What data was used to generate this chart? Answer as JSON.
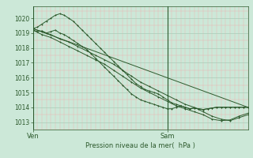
{
  "bg_color": "#cce8d8",
  "grid_color_major": "#aaccb8",
  "grid_color_minor": "#f0b0b0",
  "line_color": "#2d5a2d",
  "xlabel": "Pression niveau de la mer(  hPa )",
  "tick_color": "#2d5a2d",
  "ylim": [
    1012.5,
    1020.8
  ],
  "yticks": [
    1013,
    1014,
    1015,
    1016,
    1017,
    1018,
    1019,
    1020
  ],
  "xlim": [
    0,
    48
  ],
  "ven_x": 0,
  "sam_x": 30,
  "total_hours": 48,
  "line1_x": [
    0,
    1,
    2,
    3,
    4,
    5,
    6,
    7,
    8,
    9,
    10,
    11,
    12,
    13,
    14,
    15,
    16,
    17,
    18,
    19,
    20,
    21,
    22,
    23,
    24,
    25,
    26,
    27,
    28,
    29,
    30,
    31,
    32,
    33,
    34,
    35,
    36,
    37,
    38,
    39,
    40,
    41,
    42,
    43,
    44,
    45,
    46,
    47,
    48
  ],
  "line1_y": [
    1019.2,
    1019.1,
    1019.15,
    1019.0,
    1019.1,
    1019.2,
    1019.0,
    1018.9,
    1018.7,
    1018.5,
    1018.3,
    1018.1,
    1017.9,
    1017.6,
    1017.3,
    1017.0,
    1016.7,
    1016.4,
    1016.1,
    1015.8,
    1015.5,
    1015.2,
    1014.9,
    1014.7,
    1014.5,
    1014.4,
    1014.3,
    1014.2,
    1014.1,
    1014.0,
    1013.9,
    1013.9,
    1014.0,
    1014.1,
    1014.0,
    1013.9,
    1013.95,
    1013.9,
    1013.85,
    1013.9,
    1013.95,
    1014.0,
    1014.0,
    1014.0,
    1014.0,
    1014.0,
    1014.0,
    1014.0,
    1014.0
  ],
  "line2_x": [
    0,
    1,
    2,
    3,
    4,
    5,
    6,
    7,
    8,
    9,
    10,
    11,
    12,
    13,
    14,
    15,
    16,
    17,
    18,
    19,
    20,
    21,
    22,
    23,
    24,
    25,
    26,
    27,
    28,
    29,
    30,
    31,
    32,
    33,
    34,
    35,
    36,
    37,
    38,
    39,
    40,
    41,
    42,
    43,
    44,
    45,
    46,
    47,
    48
  ],
  "line2_y": [
    1019.3,
    1019.4,
    1019.6,
    1019.8,
    1020.0,
    1020.2,
    1020.3,
    1020.2,
    1020.0,
    1019.8,
    1019.5,
    1019.2,
    1018.9,
    1018.6,
    1018.3,
    1018.0,
    1017.7,
    1017.4,
    1017.1,
    1016.8,
    1016.5,
    1016.2,
    1015.9,
    1015.6,
    1015.4,
    1015.2,
    1015.1,
    1015.0,
    1014.9,
    1014.7,
    1014.5,
    1014.3,
    1014.2,
    1014.1,
    1014.0,
    1013.9,
    1013.95,
    1013.9,
    1013.85,
    1013.9,
    1013.95,
    1014.0,
    1014.0,
    1014.0,
    1014.0,
    1014.0,
    1014.0,
    1014.0,
    1014.0
  ],
  "line3_x": [
    0,
    2,
    4,
    6,
    8,
    10,
    12,
    14,
    16,
    18,
    20,
    22,
    24,
    26,
    28,
    30,
    32,
    34,
    36,
    38,
    40,
    42,
    44,
    46,
    48
  ],
  "line3_y": [
    1019.3,
    1019.1,
    1018.9,
    1018.6,
    1018.4,
    1018.1,
    1017.8,
    1017.5,
    1017.2,
    1016.9,
    1016.5,
    1016.1,
    1015.7,
    1015.4,
    1015.1,
    1014.8,
    1014.5,
    1014.2,
    1014.0,
    1013.7,
    1013.4,
    1013.2,
    1013.1,
    1013.3,
    1013.5
  ],
  "line4_x": [
    0,
    2,
    4,
    6,
    8,
    10,
    12,
    14,
    16,
    18,
    20,
    22,
    24,
    26,
    28,
    30,
    32,
    34,
    36,
    38,
    40,
    42,
    44,
    46,
    48
  ],
  "line4_y": [
    1019.2,
    1018.9,
    1018.7,
    1018.4,
    1018.1,
    1017.8,
    1017.5,
    1017.2,
    1016.9,
    1016.5,
    1016.1,
    1015.7,
    1015.3,
    1015.0,
    1014.7,
    1014.4,
    1014.1,
    1013.9,
    1013.7,
    1013.5,
    1013.2,
    1013.1,
    1013.15,
    1013.4,
    1013.6
  ],
  "line5_x": [
    0,
    48
  ],
  "line5_y": [
    1019.3,
    1014.0
  ],
  "n_xminor": 4
}
